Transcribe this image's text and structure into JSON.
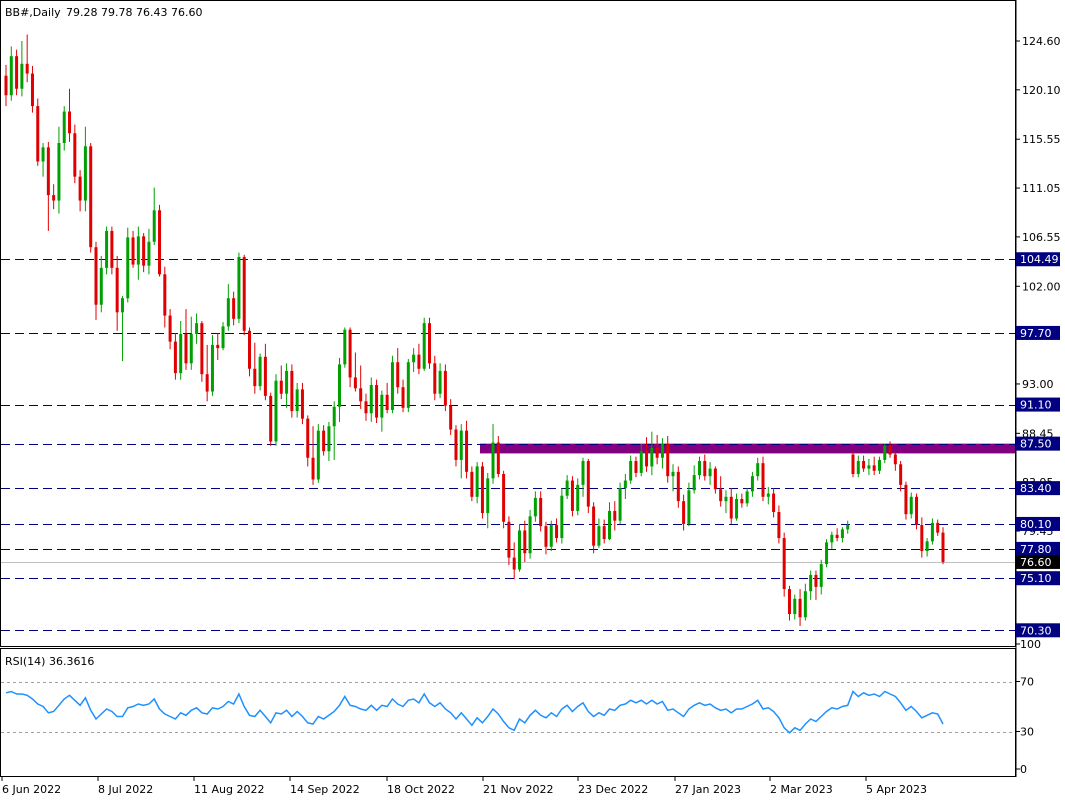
{
  "colors": {
    "background": "#ffffff",
    "frame": "#000000",
    "bull": "#00A000",
    "bear": "#E00000",
    "level_line": "#000080",
    "level_tag_bg": "#000080",
    "current_tag_bg": "#000000",
    "zone": "#800080",
    "rsi_line": "#1E90FF",
    "rsi_level_line": "#A0A0A0"
  },
  "header": {
    "symbol_timeframe": "BB#,Daily",
    "ohlc": "79.28 79.78 76.43 76.60"
  },
  "rsi": {
    "label": "RSI(14) 36.3616",
    "axis_ticks": [
      "100",
      "70",
      "30",
      "0"
    ],
    "levels": [
      70,
      30
    ]
  },
  "chart_data": {
    "type": "candlestick",
    "symbol": "BB#",
    "timeframe": "Daily",
    "last_price": 76.6,
    "last_price_label": "76.60",
    "y_ticks": [
      "124.60",
      "120.10",
      "115.55",
      "111.05",
      "106.55",
      "102.00",
      "93.00",
      "88.45",
      "83.95",
      "79.45"
    ],
    "x_ticks": [
      "6 Jun 2022",
      "8 Jul 2022",
      "11 Aug 2022",
      "14 Sep 2022",
      "18 Oct 2022",
      "21 Nov 2022",
      "23 Dec 2022",
      "27 Jan 2023",
      "2 Mar 2023",
      "5 Apr 2023"
    ],
    "ylim": [
      68.5,
      128.0
    ],
    "levels": [
      104.49,
      97.7,
      91.1,
      87.5,
      83.4,
      80.1,
      77.8,
      75.1,
      70.3
    ],
    "level_labels": [
      "104.49",
      "97.70",
      "91.10",
      "87.50",
      "83.40",
      "80.10",
      "77.80",
      "75.10",
      "70.30"
    ],
    "resistance_zone": [
      86.6,
      87.5
    ],
    "candles": [
      [
        121.4,
        122.4,
        118.6,
        119.6
      ],
      [
        119.6,
        124.1,
        119.1,
        123.2
      ],
      [
        123.2,
        123.8,
        119.6,
        120.2
      ],
      [
        120.2,
        124.6,
        119.5,
        122.5
      ],
      [
        122.5,
        125.2,
        120.8,
        121.6
      ],
      [
        121.6,
        122.3,
        118.0,
        118.6
      ],
      [
        118.6,
        119.3,
        113.1,
        113.5
      ],
      [
        113.5,
        115.2,
        112.1,
        114.8
      ],
      [
        114.8,
        115.3,
        107.1,
        110.4
      ],
      [
        110.4,
        111.4,
        109.1,
        109.9
      ],
      [
        109.9,
        116.7,
        108.7,
        115.2
      ],
      [
        115.2,
        118.6,
        114.5,
        118.1
      ],
      [
        118.1,
        120.2,
        115.3,
        116.1
      ],
      [
        116.1,
        116.9,
        111.5,
        112.1
      ],
      [
        112.1,
        112.7,
        108.9,
        109.9
      ],
      [
        109.9,
        116.7,
        108.9,
        114.9
      ],
      [
        114.9,
        115.2,
        105.1,
        105.6
      ],
      [
        105.6,
        106.1,
        98.9,
        100.3
      ],
      [
        100.3,
        104.8,
        99.6,
        103.7
      ],
      [
        103.7,
        107.5,
        103.1,
        107.1
      ],
      [
        107.1,
        107.5,
        103.1,
        103.7
      ],
      [
        103.7,
        104.8,
        97.9,
        99.6
      ],
      [
        99.6,
        101.1,
        95.1,
        100.9
      ],
      [
        100.9,
        107.4,
        100.5,
        106.5
      ],
      [
        106.5,
        107.1,
        103.7,
        104.0
      ],
      [
        104.0,
        107.5,
        102.6,
        106.6
      ],
      [
        106.6,
        106.9,
        103.3,
        103.9
      ],
      [
        103.9,
        107.3,
        103.1,
        106.1
      ],
      [
        106.1,
        111.1,
        105.8,
        109.0
      ],
      [
        109.0,
        109.5,
        102.9,
        103.1
      ],
      [
        103.1,
        103.8,
        98.2,
        99.3
      ],
      [
        99.3,
        99.9,
        96.2,
        96.9
      ],
      [
        96.9,
        97.7,
        93.4,
        94.0
      ],
      [
        94.0,
        98.8,
        93.4,
        97.6
      ],
      [
        97.6,
        99.9,
        94.3,
        94.9
      ],
      [
        94.9,
        99.2,
        94.3,
        97.6
      ],
      [
        97.6,
        99.5,
        96.7,
        98.6
      ],
      [
        98.6,
        98.8,
        93.2,
        93.9
      ],
      [
        93.9,
        96.6,
        91.4,
        92.3
      ],
      [
        92.3,
        97.5,
        91.9,
        96.6
      ],
      [
        96.6,
        97.7,
        95.2,
        96.3
      ],
      [
        96.3,
        98.7,
        96.1,
        98.3
      ],
      [
        98.3,
        102.2,
        97.9,
        100.9
      ],
      [
        100.9,
        101.5,
        98.4,
        99.0
      ],
      [
        99.0,
        105.1,
        98.6,
        104.7
      ],
      [
        104.7,
        104.9,
        97.5,
        97.9
      ],
      [
        97.9,
        98.2,
        93.7,
        94.4
      ],
      [
        94.4,
        96.8,
        92.1,
        92.8
      ],
      [
        92.8,
        95.8,
        92.4,
        95.5
      ],
      [
        95.5,
        96.7,
        91.5,
        91.9
      ],
      [
        91.9,
        92.2,
        87.3,
        87.7
      ],
      [
        87.7,
        93.9,
        87.3,
        93.3
      ],
      [
        93.3,
        94.7,
        91.6,
        92.1
      ],
      [
        92.1,
        94.9,
        90.8,
        94.2
      ],
      [
        94.2,
        94.8,
        89.9,
        90.5
      ],
      [
        90.5,
        93.1,
        89.9,
        92.5
      ],
      [
        92.5,
        93.1,
        89.3,
        89.8
      ],
      [
        89.8,
        90.1,
        85.4,
        86.2
      ],
      [
        86.2,
        89.1,
        83.7,
        84.2
      ],
      [
        84.2,
        89.3,
        83.9,
        88.7
      ],
      [
        88.7,
        89.2,
        86.4,
        86.8
      ],
      [
        86.8,
        89.5,
        85.9,
        89.1
      ],
      [
        89.1,
        91.4,
        86.0,
        90.9
      ],
      [
        90.9,
        95.4,
        89.5,
        94.8
      ],
      [
        94.8,
        98.2,
        94.5,
        98.0
      ],
      [
        98.0,
        98.2,
        92.7,
        93.6
      ],
      [
        93.6,
        95.9,
        92.3,
        92.6
      ],
      [
        92.6,
        94.7,
        90.7,
        91.4
      ],
      [
        91.4,
        92.1,
        89.6,
        90.3
      ],
      [
        90.3,
        93.6,
        89.5,
        92.9
      ],
      [
        92.9,
        93.4,
        89.4,
        89.9
      ],
      [
        89.9,
        92.4,
        88.6,
        92.0
      ],
      [
        92.0,
        93.1,
        90.3,
        90.6
      ],
      [
        90.6,
        95.6,
        90.3,
        95.0
      ],
      [
        95.0,
        96.3,
        92.1,
        92.7
      ],
      [
        92.7,
        93.4,
        90.4,
        90.8
      ],
      [
        90.8,
        95.3,
        90.4,
        95.0
      ],
      [
        95.0,
        96.3,
        94.1,
        95.7
      ],
      [
        95.7,
        96.7,
        93.9,
        94.4
      ],
      [
        94.4,
        99.1,
        94.2,
        98.6
      ],
      [
        98.6,
        99.1,
        94.4,
        94.9
      ],
      [
        94.9,
        95.6,
        91.5,
        92.1
      ],
      [
        92.1,
        94.9,
        91.7,
        94.2
      ],
      [
        94.2,
        94.8,
        90.5,
        91.0
      ],
      [
        91.0,
        91.6,
        88.3,
        88.8
      ],
      [
        88.8,
        89.2,
        85.4,
        86.0
      ],
      [
        86.0,
        89.3,
        84.3,
        88.7
      ],
      [
        88.7,
        89.6,
        84.3,
        84.9
      ],
      [
        84.9,
        85.4,
        82.2,
        82.6
      ],
      [
        82.6,
        85.8,
        82.0,
        85.4
      ],
      [
        85.4,
        85.8,
        80.6,
        81.1
      ],
      [
        81.1,
        84.8,
        79.7,
        84.3
      ],
      [
        84.3,
        89.3,
        83.8,
        87.6
      ],
      [
        87.6,
        88.2,
        84.4,
        84.7
      ],
      [
        84.7,
        85.0,
        79.7,
        80.3
      ],
      [
        80.3,
        80.8,
        76.3,
        77.0
      ],
      [
        77.0,
        78.4,
        75.0,
        75.9
      ],
      [
        75.9,
        80.1,
        75.7,
        79.5
      ],
      [
        79.5,
        80.4,
        76.6,
        77.4
      ],
      [
        77.4,
        81.4,
        76.9,
        80.8
      ],
      [
        80.8,
        83.1,
        80.3,
        82.5
      ],
      [
        82.5,
        83.1,
        79.4,
        79.9
      ],
      [
        79.9,
        80.3,
        77.3,
        78.0
      ],
      [
        78.0,
        80.4,
        77.6,
        80.0
      ],
      [
        80.0,
        80.6,
        78.4,
        78.8
      ],
      [
        78.8,
        83.4,
        78.3,
        82.7
      ],
      [
        82.7,
        84.6,
        82.4,
        84.1
      ],
      [
        84.1,
        84.5,
        80.8,
        81.3
      ],
      [
        81.3,
        84.3,
        80.9,
        83.7
      ],
      [
        83.7,
        86.2,
        82.6,
        85.9
      ],
      [
        85.9,
        86.1,
        81.1,
        81.7
      ],
      [
        81.7,
        82.1,
        77.4,
        78.1
      ],
      [
        78.1,
        80.6,
        77.9,
        79.9
      ],
      [
        79.9,
        80.5,
        78.3,
        78.7
      ],
      [
        78.7,
        82.1,
        78.6,
        81.3
      ],
      [
        81.3,
        82.2,
        79.5,
        80.4
      ],
      [
        80.4,
        83.9,
        80.1,
        83.4
      ],
      [
        83.4,
        84.7,
        82.4,
        84.1
      ],
      [
        84.1,
        86.4,
        83.8,
        85.9
      ],
      [
        85.9,
        86.3,
        84.4,
        84.8
      ],
      [
        84.8,
        87.5,
        84.5,
        86.8
      ],
      [
        86.8,
        88.1,
        84.9,
        85.4
      ],
      [
        85.4,
        88.6,
        84.6,
        87.1
      ],
      [
        87.1,
        88.3,
        85.6,
        86.2
      ],
      [
        86.2,
        88.0,
        85.2,
        87.5
      ],
      [
        87.5,
        88.2,
        83.9,
        84.5
      ],
      [
        84.5,
        85.6,
        83.1,
        84.9
      ],
      [
        84.9,
        85.4,
        81.6,
        82.2
      ],
      [
        82.2,
        82.8,
        79.5,
        80.1
      ],
      [
        80.1,
        83.9,
        79.9,
        83.2
      ],
      [
        83.2,
        85.5,
        82.9,
        84.6
      ],
      [
        84.6,
        86.3,
        84.2,
        85.9
      ],
      [
        85.9,
        86.5,
        84.1,
        84.5
      ],
      [
        84.5,
        85.8,
        83.7,
        85.2
      ],
      [
        85.2,
        85.4,
        82.9,
        83.3
      ],
      [
        83.3,
        84.5,
        81.7,
        82.2
      ],
      [
        82.2,
        83.2,
        81.1,
        82.6
      ],
      [
        82.6,
        83.4,
        80.1,
        80.6
      ],
      [
        80.6,
        82.9,
        80.4,
        82.4
      ],
      [
        82.4,
        82.9,
        81.6,
        82.0
      ],
      [
        82.0,
        83.4,
        81.7,
        83.1
      ],
      [
        83.1,
        84.9,
        82.6,
        84.5
      ],
      [
        84.5,
        86.2,
        84.1,
        85.7
      ],
      [
        85.7,
        86.3,
        82.2,
        82.6
      ],
      [
        82.6,
        83.5,
        81.9,
        82.9
      ],
      [
        82.9,
        83.4,
        80.7,
        81.2
      ],
      [
        81.2,
        81.8,
        78.3,
        78.8
      ],
      [
        78.8,
        79.3,
        73.4,
        74.1
      ],
      [
        74.1,
        74.4,
        71.2,
        71.8
      ],
      [
        71.8,
        73.6,
        71.3,
        73.2
      ],
      [
        73.2,
        74.1,
        70.7,
        71.5
      ],
      [
        71.5,
        74.6,
        71.2,
        73.9
      ],
      [
        73.9,
        75.8,
        73.1,
        75.4
      ],
      [
        75.4,
        75.8,
        73.1,
        74.3
      ],
      [
        74.3,
        76.8,
        73.6,
        76.4
      ],
      [
        76.4,
        78.7,
        76.1,
        78.4
      ],
      [
        78.4,
        79.4,
        77.8,
        79.1
      ],
      [
        79.1,
        79.7,
        78.5,
        78.8
      ],
      [
        78.8,
        79.8,
        78.4,
        79.6
      ],
      [
        79.6,
        80.4,
        79.2,
        80.0
      ],
      [
        86.5,
        86.8,
        84.4,
        84.7
      ],
      [
        84.7,
        86.4,
        84.4,
        85.9
      ],
      [
        85.9,
        86.4,
        84.9,
        85.2
      ],
      [
        85.2,
        86.1,
        84.6,
        85.5
      ],
      [
        85.5,
        86.3,
        84.6,
        85.0
      ],
      [
        85.0,
        86.3,
        84.7,
        86.0
      ],
      [
        86.0,
        87.5,
        85.7,
        87.3
      ],
      [
        87.3,
        87.7,
        86.2,
        86.5
      ],
      [
        86.5,
        86.8,
        85.0,
        85.6
      ],
      [
        85.6,
        85.9,
        83.1,
        83.7
      ],
      [
        83.7,
        84.0,
        80.5,
        81.0
      ],
      [
        81.0,
        83.0,
        80.6,
        82.6
      ],
      [
        82.6,
        82.9,
        79.6,
        80.0
      ],
      [
        80.0,
        80.7,
        77.0,
        77.6
      ],
      [
        77.6,
        78.8,
        77.1,
        78.5
      ],
      [
        78.5,
        80.6,
        78.2,
        80.2
      ],
      [
        80.2,
        80.5,
        79.0,
        79.3
      ],
      [
        79.3,
        79.8,
        76.4,
        76.6
      ]
    ],
    "rsi_values": [
      61,
      62,
      60,
      60,
      59,
      56,
      52,
      50,
      45,
      46,
      51,
      56,
      59,
      55,
      51,
      57,
      47,
      40,
      44,
      48,
      46,
      42,
      42,
      49,
      50,
      52,
      51,
      52,
      56,
      48,
      44,
      42,
      40,
      45,
      43,
      47,
      49,
      45,
      44,
      49,
      48,
      50,
      54,
      52,
      60,
      50,
      43,
      42,
      47,
      42,
      37,
      45,
      44,
      47,
      42,
      46,
      42,
      37,
      36,
      42,
      40,
      43,
      46,
      51,
      58,
      51,
      50,
      48,
      47,
      51,
      47,
      51,
      50,
      56,
      52,
      50,
      55,
      56,
      53,
      60,
      53,
      50,
      53,
      48,
      45,
      40,
      45,
      40,
      35,
      41,
      37,
      42,
      48,
      44,
      38,
      33,
      31,
      40,
      37,
      43,
      47,
      43,
      41,
      45,
      42,
      48,
      51,
      46,
      50,
      53,
      46,
      42,
      45,
      43,
      48,
      47,
      51,
      52,
      55,
      53,
      55,
      52,
      55,
      52,
      54,
      47,
      48,
      45,
      42,
      48,
      51,
      53,
      51,
      52,
      49,
      47,
      48,
      45,
      48,
      48,
      50,
      52,
      55,
      48,
      49,
      46,
      41,
      33,
      29,
      33,
      31,
      36,
      40,
      38,
      42,
      46,
      49,
      48,
      50,
      51,
      62,
      58,
      61,
      59,
      60,
      58,
      62,
      60,
      58,
      53,
      47,
      50,
      46,
      41,
      43,
      45,
      44,
      36
    ]
  }
}
